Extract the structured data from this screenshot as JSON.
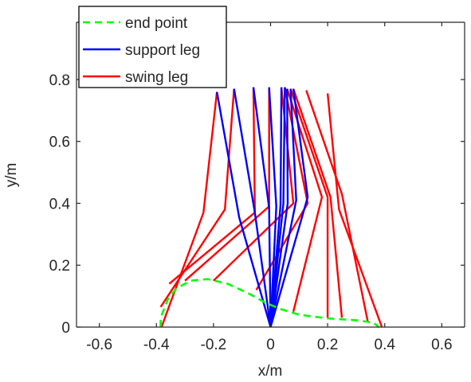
{
  "chart_data": {
    "type": "line",
    "title": "",
    "xlabel": "x/m",
    "ylabel": "y/m",
    "xlim": [
      -0.68,
      0.68
    ],
    "ylim": [
      0,
      0.985
    ],
    "x_ticks": [
      -0.6,
      -0.4,
      -0.2,
      0,
      0.2,
      0.4,
      0.6
    ],
    "x_tick_labels": [
      "-0.6",
      "-0.4",
      "-0.2",
      "0",
      "0.2",
      "0.4",
      "0.6"
    ],
    "y_ticks": [
      0,
      0.2,
      0.4,
      0.6,
      0.8
    ],
    "y_tick_labels": [
      "0",
      "0.2",
      "0.4",
      "0.6",
      "0.8"
    ],
    "grid": false,
    "legend_position": "top-left",
    "legend": [
      {
        "label": "end point",
        "color": "#00ff00",
        "style": "dashed"
      },
      {
        "label": "support leg",
        "color": "#0000ff",
        "style": "solid"
      },
      {
        "label": "swing leg",
        "color": "#ff0000",
        "style": "solid"
      }
    ],
    "series": [
      {
        "name": "end point",
        "color": "#00ff00",
        "style": "dashed",
        "points": [
          [
            -0.385,
            0.0
          ],
          [
            -0.385,
            0.03
          ],
          [
            -0.36,
            0.09
          ],
          [
            -0.33,
            0.125
          ],
          [
            -0.28,
            0.15
          ],
          [
            -0.22,
            0.155
          ],
          [
            -0.15,
            0.14
          ],
          [
            -0.08,
            0.11
          ],
          [
            -0.02,
            0.08
          ],
          [
            0.03,
            0.06
          ],
          [
            0.1,
            0.04
          ],
          [
            0.2,
            0.028
          ],
          [
            0.3,
            0.022
          ],
          [
            0.36,
            0.015
          ],
          [
            0.38,
            0.0
          ]
        ]
      },
      {
        "name": "support leg",
        "color": "#0000ff",
        "style": "solid",
        "segments": [
          [
            [
              0.0,
              0.0
            ],
            [
              -0.11,
              0.355
            ],
            [
              -0.188,
              0.76
            ]
          ],
          [
            [
              0.0,
              0.0
            ],
            [
              -0.055,
              0.37
            ],
            [
              -0.128,
              0.77
            ]
          ],
          [
            [
              0.0,
              0.0
            ],
            [
              -0.005,
              0.385
            ],
            [
              -0.06,
              0.775
            ]
          ],
          [
            [
              0.0,
              0.0
            ],
            [
              0.02,
              0.39
            ],
            [
              -0.005,
              0.775
            ]
          ],
          [
            [
              0.0,
              0.0
            ],
            [
              0.035,
              0.395
            ],
            [
              0.038,
              0.775
            ]
          ],
          [
            [
              0.0,
              0.0
            ],
            [
              0.045,
              0.4
            ],
            [
              0.05,
              0.775
            ]
          ],
          [
            [
              0.0,
              0.0
            ],
            [
              0.06,
              0.4
            ],
            [
              0.058,
              0.77
            ]
          ],
          [
            [
              0.0,
              0.0
            ],
            [
              0.09,
              0.41
            ],
            [
              0.07,
              0.77
            ]
          ],
          [
            [
              0.0,
              0.0
            ],
            [
              0.13,
              0.42
            ],
            [
              0.08,
              0.77
            ]
          ]
        ]
      },
      {
        "name": "swing leg",
        "color": "#ff0000",
        "style": "solid",
        "segments": [
          [
            [
              -0.382,
              0.0
            ],
            [
              -0.235,
              0.37
            ],
            [
              -0.188,
              0.76
            ]
          ],
          [
            [
              -0.385,
              0.065
            ],
            [
              -0.16,
              0.38
            ],
            [
              -0.128,
              0.77
            ]
          ],
          [
            [
              -0.355,
              0.14
            ],
            [
              -0.055,
              0.37
            ],
            [
              -0.06,
              0.775
            ]
          ],
          [
            [
              -0.3,
              0.15
            ],
            [
              -0.005,
              0.39
            ],
            [
              -0.005,
              0.775
            ]
          ],
          [
            [
              -0.2,
              0.15
            ],
            [
              0.08,
              0.4
            ],
            [
              0.038,
              0.775
            ]
          ],
          [
            [
              -0.05,
              0.12
            ],
            [
              0.13,
              0.4
            ],
            [
              0.05,
              0.775
            ]
          ],
          [
            [
              0.08,
              0.05
            ],
            [
              0.18,
              0.42
            ],
            [
              0.058,
              0.77
            ]
          ],
          [
            [
              0.2,
              0.03
            ],
            [
              0.2,
              0.42
            ],
            [
              0.07,
              0.77
            ]
          ],
          [
            [
              0.25,
              0.03
            ],
            [
              0.21,
              0.42
            ],
            [
              0.08,
              0.77
            ]
          ],
          [
            [
              0.34,
              0.02
            ],
            [
              0.25,
              0.43
            ],
            [
              0.125,
              0.765
            ]
          ],
          [
            [
              0.39,
              0.0
            ],
            [
              0.24,
              0.38
            ],
            [
              0.2,
              0.755
            ]
          ]
        ]
      }
    ]
  }
}
